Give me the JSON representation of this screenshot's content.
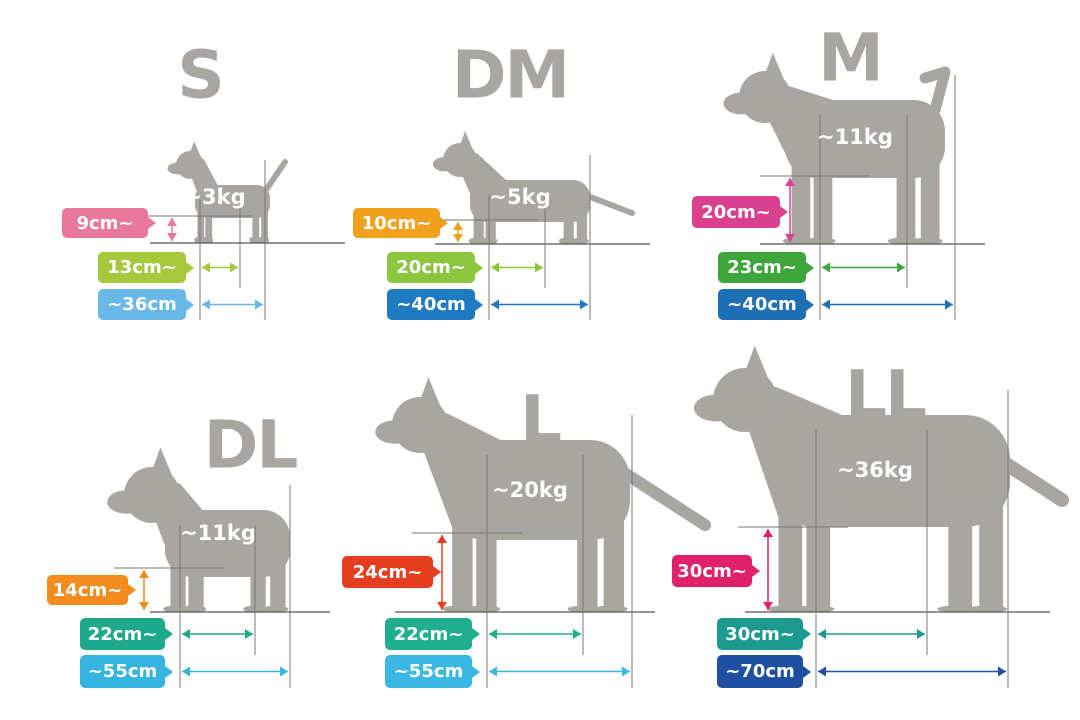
{
  "panels": [
    {
      "size": "S",
      "weight": "~3kg",
      "height": {
        "label": "9cm~",
        "color": "#e9789c"
      },
      "length": {
        "label": "13cm~",
        "color": "#a5c83c"
      },
      "total": {
        "label": "~36cm",
        "color": "#6ab8e8"
      }
    },
    {
      "size": "DM",
      "weight": "~5kg",
      "height": {
        "label": "10cm~",
        "color": "#f2a11f"
      },
      "length": {
        "label": "20cm~",
        "color": "#8cc63f"
      },
      "total": {
        "label": "~40cm",
        "color": "#1f7bc1"
      }
    },
    {
      "size": "M",
      "weight": "~11kg",
      "height": {
        "label": "20cm~",
        "color": "#d9408e"
      },
      "length": {
        "label": "23cm~",
        "color": "#3ea53a"
      },
      "total": {
        "label": "~40cm",
        "color": "#1f6fb5"
      }
    },
    {
      "size": "DL",
      "weight": "~11kg",
      "height": {
        "label": "14cm~",
        "color": "#f28c1f"
      },
      "length": {
        "label": "22cm~",
        "color": "#1fa98c"
      },
      "total": {
        "label": "~55cm",
        "color": "#35b4e0"
      }
    },
    {
      "size": "L",
      "weight": "~20kg",
      "height": {
        "label": "24cm~",
        "color": "#e53e1f"
      },
      "length": {
        "label": "22cm~",
        "color": "#1fae8e"
      },
      "total": {
        "label": "~55cm",
        "color": "#3ab7e2"
      }
    },
    {
      "size": "LL",
      "weight": "~36kg",
      "height": {
        "label": "30cm~",
        "color": "#e0206a"
      },
      "length": {
        "label": "30cm~",
        "color": "#1d9a8f"
      },
      "total": {
        "label": "~70cm",
        "color": "#1f4fa0"
      }
    }
  ],
  "silhouette_color": "#a9a6a2"
}
